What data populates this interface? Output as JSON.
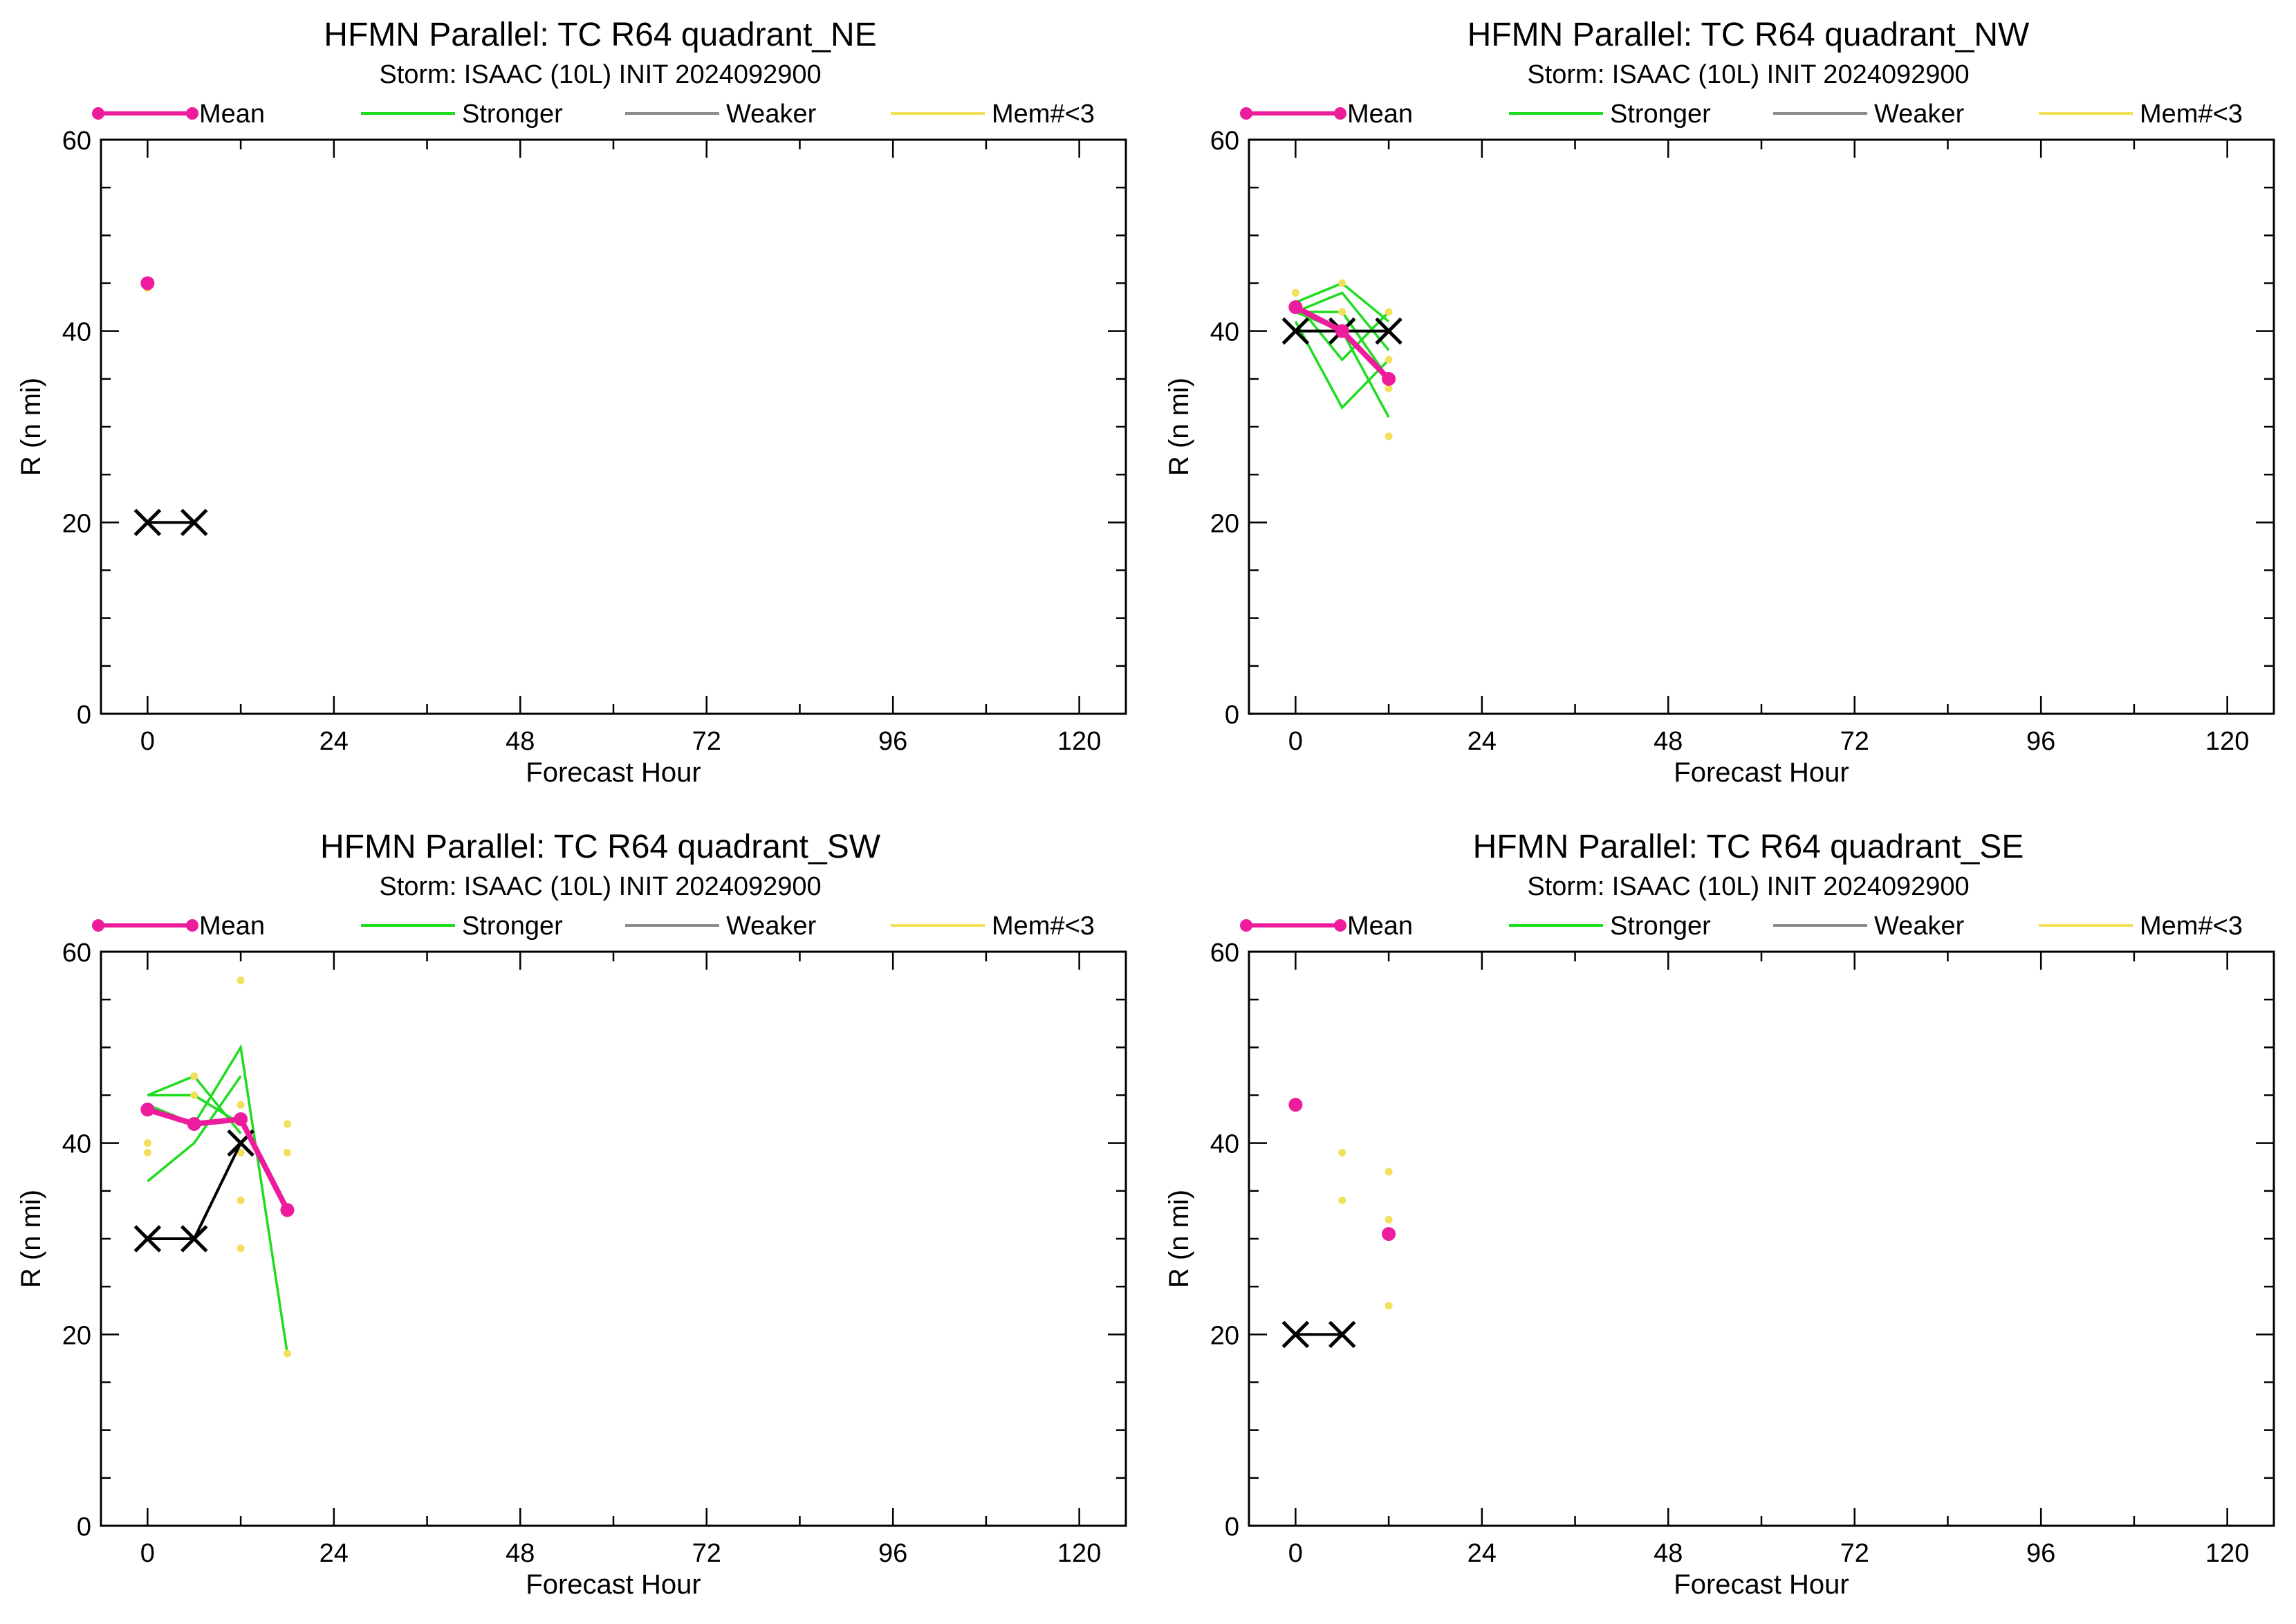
{
  "colors": {
    "mean": "#ec1c9c",
    "stronger": "#1edc1e",
    "weaker": "#8c8c8c",
    "members_lt3": "#f2e05a",
    "best_track": "#000000"
  },
  "chart_data": [
    {
      "type": "line",
      "title": "HFMN Parallel: TC  R64 quadrant_NE",
      "subtitle": "Storm: ISAAC (10L) INIT 2024092900",
      "xlabel": "Forecast Hour",
      "ylabel": "R (n mi)",
      "xlim": [
        -6,
        126
      ],
      "ylim": [
        0,
        60
      ],
      "xticks": [
        "0",
        "24",
        "48",
        "72",
        "96",
        "120"
      ],
      "yticks": [
        "0",
        "20",
        "40",
        "60"
      ],
      "legend": [
        "Mean",
        "Stronger",
        "Weaker",
        "Mem#<3"
      ],
      "legend_position": "top",
      "mean": [
        [
          0,
          45
        ]
      ],
      "stronger_members": [],
      "weaker_members": [],
      "member_points": [
        [
          0,
          44.5
        ]
      ],
      "best_track": [
        [
          0,
          20
        ],
        [
          6,
          20
        ]
      ]
    },
    {
      "type": "line",
      "title": "HFMN Parallel: TC  R64 quadrant_NW",
      "subtitle": "Storm: ISAAC (10L) INIT 2024092900",
      "xlabel": "Forecast Hour",
      "ylabel": "R (n mi)",
      "xlim": [
        -6,
        126
      ],
      "ylim": [
        0,
        60
      ],
      "xticks": [
        "0",
        "24",
        "48",
        "72",
        "96",
        "120"
      ],
      "yticks": [
        "0",
        "20",
        "40",
        "60"
      ],
      "legend": [
        "Mean",
        "Stronger",
        "Weaker",
        "Mem#<3"
      ],
      "legend_position": "top",
      "mean": [
        [
          0,
          42.5
        ],
        [
          6,
          40
        ],
        [
          12,
          35
        ]
      ],
      "stronger_members": [
        [
          [
            0,
            43
          ],
          [
            6,
            45
          ],
          [
            12,
            41
          ]
        ],
        [
          [
            0,
            42
          ],
          [
            6,
            44
          ],
          [
            12,
            38
          ]
        ],
        [
          [
            0,
            42
          ],
          [
            6,
            42
          ],
          [
            12,
            35
          ]
        ],
        [
          [
            0,
            43
          ],
          [
            6,
            37
          ],
          [
            12,
            42
          ]
        ],
        [
          [
            0,
            41
          ],
          [
            6,
            32
          ],
          [
            12,
            37
          ]
        ],
        [
          [
            0,
            42
          ],
          [
            6,
            40
          ],
          [
            12,
            31
          ]
        ]
      ],
      "weaker_members": [],
      "member_points": [
        [
          0,
          44
        ],
        [
          6,
          45
        ],
        [
          6,
          42
        ],
        [
          12,
          42
        ],
        [
          12,
          37
        ],
        [
          12,
          34
        ],
        [
          12,
          29
        ]
      ],
      "best_track": [
        [
          0,
          40
        ],
        [
          6,
          40
        ],
        [
          12,
          40
        ]
      ]
    },
    {
      "type": "line",
      "title": "HFMN Parallel: TC  R64 quadrant_SW",
      "subtitle": "Storm: ISAAC (10L) INIT 2024092900",
      "xlabel": "Forecast Hour",
      "ylabel": "R (n mi)",
      "xlim": [
        -6,
        126
      ],
      "ylim": [
        0,
        60
      ],
      "xticks": [
        "0",
        "24",
        "48",
        "72",
        "96",
        "120"
      ],
      "yticks": [
        "0",
        "20",
        "40",
        "60"
      ],
      "legend": [
        "Mean",
        "Stronger",
        "Weaker",
        "Mem#<3"
      ],
      "legend_position": "top",
      "mean": [
        [
          0,
          43.5
        ],
        [
          6,
          42
        ],
        [
          12,
          42.5
        ],
        [
          18,
          33
        ]
      ],
      "stronger_members": [
        [
          [
            0,
            45
          ],
          [
            6,
            47
          ],
          [
            12,
            41
          ]
        ],
        [
          [
            0,
            45
          ],
          [
            6,
            45
          ],
          [
            12,
            42
          ]
        ],
        [
          [
            0,
            44
          ],
          [
            6,
            42
          ],
          [
            12,
            50
          ],
          [
            18,
            18
          ]
        ],
        [
          [
            0,
            36
          ],
          [
            6,
            40
          ],
          [
            12,
            47
          ]
        ]
      ],
      "weaker_members": [],
      "member_points": [
        [
          0,
          40
        ],
        [
          0,
          39
        ],
        [
          6,
          47
        ],
        [
          6,
          45
        ],
        [
          12,
          57
        ],
        [
          12,
          44
        ],
        [
          12,
          39
        ],
        [
          12,
          34
        ],
        [
          12,
          29
        ],
        [
          18,
          42
        ],
        [
          18,
          39
        ],
        [
          18,
          18
        ]
      ],
      "best_track": [
        [
          0,
          30
        ],
        [
          6,
          30
        ],
        [
          12,
          40
        ]
      ]
    },
    {
      "type": "line",
      "title": "HFMN Parallel: TC  R64 quadrant_SE",
      "subtitle": "Storm: ISAAC (10L) INIT 2024092900",
      "xlabel": "Forecast Hour",
      "ylabel": "R (n mi)",
      "xlim": [
        -6,
        126
      ],
      "ylim": [
        0,
        60
      ],
      "xticks": [
        "0",
        "24",
        "48",
        "72",
        "96",
        "120"
      ],
      "yticks": [
        "0",
        "20",
        "40",
        "60"
      ],
      "legend": [
        "Mean",
        "Stronger",
        "Weaker",
        "Mem#<3"
      ],
      "legend_position": "top",
      "mean": [
        [
          0,
          44
        ]
      ],
      "stronger_members": [],
      "weaker_members": [],
      "member_points": [
        [
          6,
          39
        ],
        [
          6,
          34
        ],
        [
          12,
          37
        ],
        [
          12,
          32
        ],
        [
          12,
          30.5
        ],
        [
          12,
          23
        ]
      ],
      "best_track": [
        [
          0,
          20
        ],
        [
          6,
          20
        ]
      ],
      "extra_mean_points": [
        [
          12,
          30.5
        ]
      ]
    }
  ]
}
